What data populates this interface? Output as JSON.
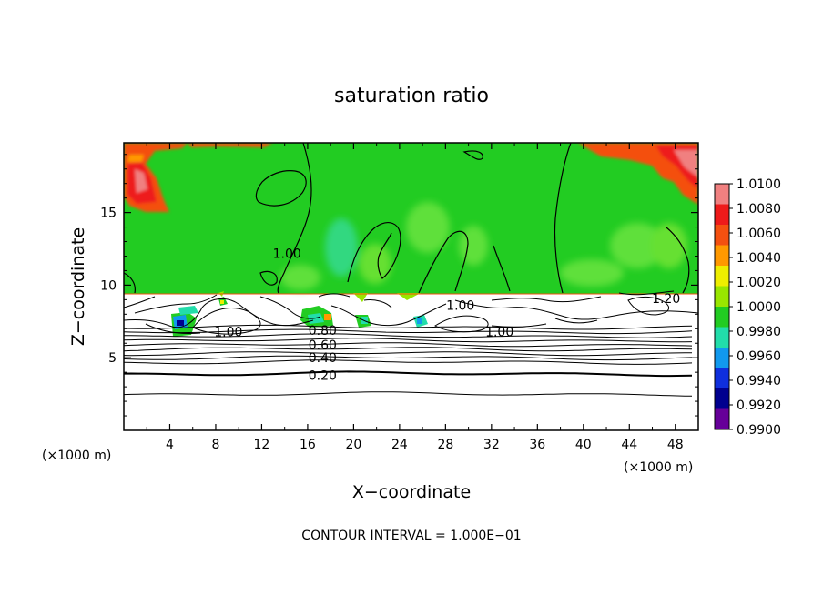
{
  "chart_data": {
    "type": "heatmap",
    "title": "saturation ratio",
    "xlabel": "X−coordinate",
    "ylabel": "Z−coordinate",
    "x_unit_left": "(×1000 m)",
    "x_unit_right": "(×1000 m)",
    "footer": "CONTOUR INTERVAL = 1.000E−01",
    "xlim": [
      0,
      50
    ],
    "ylim": [
      0,
      19.8
    ],
    "x_ticks": [
      "4",
      "8",
      "12",
      "16",
      "20",
      "24",
      "28",
      "32",
      "36",
      "40",
      "44",
      "48"
    ],
    "x_tick_values": [
      4,
      8,
      12,
      16,
      20,
      24,
      28,
      32,
      36,
      40,
      44,
      48
    ],
    "y_ticks": [
      "5",
      "10",
      "15"
    ],
    "y_tick_values": [
      5,
      10,
      15
    ],
    "colorbar": {
      "range": [
        0.99,
        1.01
      ],
      "labels": [
        "1.0100",
        "1.0080",
        "1.0060",
        "1.0040",
        "1.0020",
        "1.0000",
        "0.9980",
        "0.9960",
        "0.9940",
        "0.9920",
        "0.9900"
      ],
      "colors": [
        "#f08080",
        "#ee1a1a",
        "#f45010",
        "#ff9900",
        "#eeee00",
        "#99e600",
        "#22cc22",
        "#22ddaa",
        "#1199ee",
        "#0f2fdd",
        "#00008f",
        "#660099"
      ]
    },
    "contour_labels": [
      {
        "text": "1.00",
        "x": 14.2,
        "z": 12.2
      },
      {
        "text": "1.00",
        "x": 29.3,
        "z": 8.6
      },
      {
        "text": "1.20",
        "x": 47.2,
        "z": 9.1
      },
      {
        "text": "1.00",
        "x": 9.1,
        "z": 6.8
      },
      {
        "text": "0.80",
        "x": 17.3,
        "z": 6.9
      },
      {
        "text": "0.60",
        "x": 17.3,
        "z": 5.9
      },
      {
        "text": "0.40",
        "x": 17.3,
        "z": 5.0
      },
      {
        "text": "0.20",
        "x": 17.3,
        "z": 3.8
      },
      {
        "text": "1.00",
        "x": 32.7,
        "z": 6.8
      }
    ],
    "moist_layer_base_z": 9.4,
    "dry_contour_levels_z": [
      2.5,
      3.9,
      4.7,
      5.0,
      5.3,
      5.6,
      5.9,
      6.2,
      6.5,
      6.8,
      7.1
    ],
    "grid": false
  }
}
